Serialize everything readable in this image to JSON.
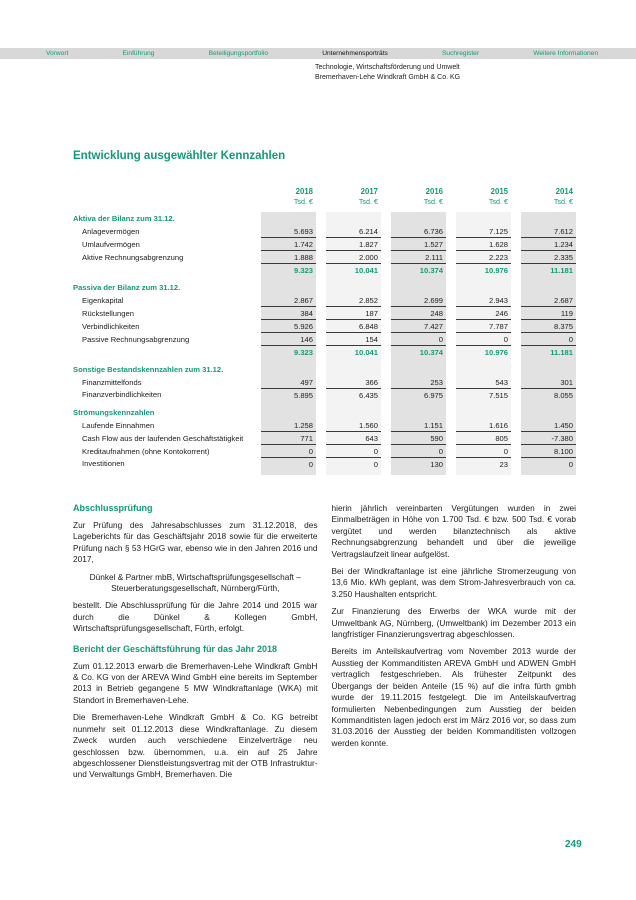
{
  "colors": {
    "accent": "#129b78",
    "nav_bar": "#d8d8d8",
    "stripe_dark": "#e2e2e2",
    "stripe_light": "#f3f3f3"
  },
  "nav": {
    "items": [
      {
        "label": "Vorwort",
        "active": false
      },
      {
        "label": "Einführung",
        "active": false
      },
      {
        "label": "Beteiligungsportfolio",
        "active": false
      },
      {
        "label": "Unternehmensporträts",
        "active": true
      },
      {
        "label": "Suchregister",
        "active": false
      },
      {
        "label": "Weitere Informationen",
        "active": false
      }
    ]
  },
  "breadcrumb": {
    "line1": "Technologie, Wirtschaftsförderung und Umwelt",
    "line2": "Bremerhaven-Lehe Windkraft GmbH & Co. KG"
  },
  "title": "Entwicklung ausgewählter Kennzahlen",
  "table": {
    "columns": [
      {
        "year": "2018",
        "unit": "Tsd. €"
      },
      {
        "year": "2017",
        "unit": "Tsd. €"
      },
      {
        "year": "2016",
        "unit": "Tsd. €"
      },
      {
        "year": "2015",
        "unit": "Tsd. €"
      },
      {
        "year": "2014",
        "unit": "Tsd. €"
      }
    ],
    "rows": [
      {
        "type": "section",
        "label": "Aktiva der Bilanz zum 31.12.",
        "values": [
          "",
          "",
          "",
          "",
          ""
        ]
      },
      {
        "type": "data",
        "label": "Anlagevermögen",
        "values": [
          "5.693",
          "6.214",
          "6.736",
          "7.125",
          "7.612"
        ]
      },
      {
        "type": "data",
        "label": "Umlaufvermögen",
        "values": [
          "1.742",
          "1.827",
          "1.527",
          "1.628",
          "1.234"
        ]
      },
      {
        "type": "data",
        "label": "Aktive Rechnungsabgrenzung",
        "values": [
          "1.888",
          "2.000",
          "2.111",
          "2.223",
          "2.335"
        ]
      },
      {
        "type": "total",
        "label": "",
        "values": [
          "9.323",
          "10.041",
          "10.374",
          "10.976",
          "11.181"
        ]
      },
      {
        "type": "spacer",
        "label": "",
        "values": [
          "",
          "",
          "",
          "",
          ""
        ]
      },
      {
        "type": "section",
        "label": "Passiva der Bilanz zum 31.12.",
        "values": [
          "",
          "",
          "",
          "",
          ""
        ]
      },
      {
        "type": "data",
        "label": "Eigenkapital",
        "values": [
          "2.867",
          "2.852",
          "2.699",
          "2.943",
          "2.687"
        ]
      },
      {
        "type": "data",
        "label": "Rückstellungen",
        "values": [
          "384",
          "187",
          "248",
          "246",
          "119"
        ]
      },
      {
        "type": "data",
        "label": "Verbindlichkeiten",
        "values": [
          "5.926",
          "6.848",
          "7.427",
          "7.787",
          "8.375"
        ]
      },
      {
        "type": "data",
        "label": "Passive Rechnungsabgrenzung",
        "values": [
          "146",
          "154",
          "0",
          "0",
          "0"
        ]
      },
      {
        "type": "total",
        "label": "",
        "values": [
          "9.323",
          "10.041",
          "10.374",
          "10.976",
          "11.181"
        ]
      },
      {
        "type": "spacer",
        "label": "",
        "values": [
          "",
          "",
          "",
          "",
          ""
        ]
      },
      {
        "type": "section",
        "label": "Sonstige Bestandskennzahlen zum 31.12.",
        "values": [
          "",
          "",
          "",
          "",
          ""
        ]
      },
      {
        "type": "data",
        "label": "Finanzmittelfonds",
        "values": [
          "497",
          "366",
          "253",
          "543",
          "301"
        ]
      },
      {
        "type": "datalast",
        "label": "Finanzverbindlichkeiten",
        "values": [
          "5.895",
          "6.435",
          "6.975",
          "7.515",
          "8.055"
        ]
      },
      {
        "type": "spacer",
        "label": "",
        "values": [
          "",
          "",
          "",
          "",
          ""
        ]
      },
      {
        "type": "section",
        "label": "Strömungskennzahlen",
        "values": [
          "",
          "",
          "",
          "",
          ""
        ]
      },
      {
        "type": "data",
        "label": "Laufende Einnahmen",
        "values": [
          "1.258",
          "1.560",
          "1.151",
          "1.616",
          "1.450"
        ]
      },
      {
        "type": "data",
        "label": "Cash Flow aus der laufenden Geschäftstätigkeit",
        "values": [
          "771",
          "643",
          "590",
          "805",
          "-7.380"
        ]
      },
      {
        "type": "data",
        "label": "Kreditaufnahmen (ohne Kontokorrent)",
        "values": [
          "0",
          "0",
          "0",
          "0",
          "8.100"
        ]
      },
      {
        "type": "datalast",
        "label": "Investitionen",
        "values": [
          "0",
          "0",
          "130",
          "23",
          "0"
        ]
      },
      {
        "type": "spacer",
        "label": "",
        "values": [
          "",
          "",
          "",
          "",
          ""
        ]
      }
    ]
  },
  "articles": {
    "left": [
      {
        "type": "heading",
        "text": "Abschlussprüfung"
      },
      {
        "type": "p",
        "text": "Zur Prüfung des Jahresabschlusses zum 31.12.2018, des Lageberichts für das Geschäftsjahr 2018 sowie für die erweiterte Prüfung nach § 53 HGrG war, ebenso wie in den Jahren 2016 und 2017,"
      },
      {
        "type": "p-center",
        "text": "Dünkel & Partner mbB, Wirtschaftsprüfungsgesellschaft – Steuerberatungsgesellschaft, Nürnberg/Fürth,"
      },
      {
        "type": "p",
        "text": "bestellt. Die Abschlussprüfung für die Jahre 2014 und 2015 war durch die Dünkel & Kollegen GmbH, Wirtschaftsprüfungsgesellschaft, Fürth, erfolgt."
      },
      {
        "type": "heading",
        "text": "Bericht der Geschäftsführung für das Jahr 2018"
      },
      {
        "type": "p",
        "text": "Zum 01.12.2013 erwarb die Bremerhaven-Lehe Windkraft GmbH & Co. KG von der AREVA Wind GmbH eine bereits im September 2013 in Betrieb gegangene 5 MW Windkraftanlage (WKA) mit Standort in Bremerhaven-Lehe."
      },
      {
        "type": "p",
        "text": "Die Bremerhaven-Lehe Windkraft GmbH & Co. KG betreibt nunmehr seit 01.12.2013 diese Windkraftanlage. Zu diesem Zweck wurden auch verschiedene Einzelverträge neu geschlossen bzw. übernommen, u.a. ein auf 25 Jahre abgeschlossener Dienstleistungsvertrag mit der OTB Infrastruktur- und Verwaltungs GmbH, Bremerhaven. Die"
      }
    ],
    "right": [
      {
        "type": "p",
        "text": "hierin jährlich vereinbarten Vergütungen wurden in zwei Einmalbeträgen in Höhe von 1.700 Tsd. € bzw. 500 Tsd. € vorab vergütet und werden bilanztechnisch als aktive Rechnungsabgrenzung behandelt und über die jeweilige Vertragslaufzeit linear aufgelöst."
      },
      {
        "type": "p",
        "text": "Bei der Windkraftanlage ist eine jährliche Stromerzeugung von 13,6 Mio. kWh geplant, was dem Strom-Jahresverbrauch von ca. 3.250 Haushalten entspricht."
      },
      {
        "type": "p",
        "text": "Zur Finanzierung des Erwerbs der WKA wurde mit der Umweltbank AG, Nürnberg, (Umweltbank) im Dezember 2013 ein langfristiger Finanzierungsvertrag abgeschlossen."
      },
      {
        "type": "p",
        "text": "Bereits im Anteilskaufvertrag vom November 2013 wurde der Ausstieg der Kommanditisten AREVA GmbH und ADWEN GmbH vertraglich festgeschrieben. Als frühester Zeitpunkt des Übergangs der beiden Anteile (15 %) auf die infra fürth gmbh wurde der 19.11.2015 festgelegt. Die im Anteilskaufvertrag formulierten Nebenbedingungen zum Ausstieg der beiden Kommanditisten lagen jedoch erst im März 2016 vor, so dass zum 31.03.2016 der Ausstieg der beiden Kommanditisten vollzogen werden konnte."
      }
    ]
  },
  "footer": {
    "page_number": "249"
  }
}
